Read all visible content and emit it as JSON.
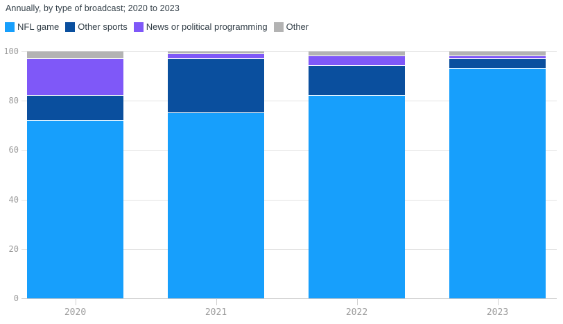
{
  "header": {
    "subtitle": "Annually, by type of broadcast; 2020 to 2023"
  },
  "chart_data": {
    "type": "bar",
    "variant": "stacked",
    "title": "Annually, by type of broadcast; 2020 to 2023",
    "categories": [
      "2020",
      "2021",
      "2022",
      "2023"
    ],
    "series": [
      {
        "name": "NFL game",
        "color": "#179ffc",
        "values": [
          72,
          75,
          82,
          93
        ]
      },
      {
        "name": "Other sports",
        "color": "#0a4f9e",
        "values": [
          10,
          22,
          12,
          4
        ]
      },
      {
        "name": "News or political programming",
        "color": "#7f58f8",
        "values": [
          15,
          2,
          4,
          1
        ]
      },
      {
        "name": "Other",
        "color": "#b3b3b3",
        "values": [
          3,
          1,
          2,
          2
        ]
      }
    ],
    "xlabel": "",
    "ylabel": "",
    "ylim": [
      0,
      100
    ],
    "yticks": [
      0,
      20,
      40,
      60,
      80,
      100
    ],
    "grid": true,
    "legend_position": "top",
    "colors": {
      "title_text": "#333f48",
      "axis_text": "#9b9b9b",
      "gridline": "#e2e2e2",
      "baseline": "#c9c9c9",
      "background": "#ffffff"
    }
  }
}
